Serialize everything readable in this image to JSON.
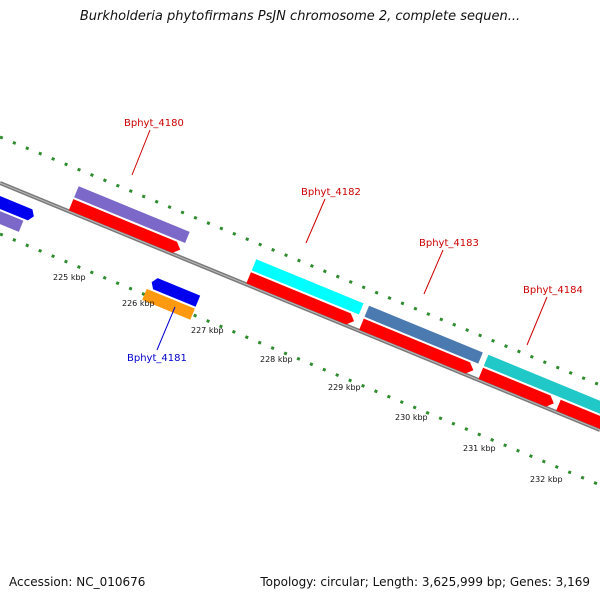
{
  "title": "Burkholderia phytofirmans PsJN chromosome 2, complete sequen...",
  "accession_text": "Accession: NC_010676",
  "summary_text": "Topology: circular; Length: 3,625,999 bp; Genes: 3,169",
  "colors": {
    "backbone": "#7a7a7a",
    "tick": "#2e8b2e",
    "cds": "#ff0000",
    "label_red": "#cc0000",
    "label_blue": "#0000cc",
    "purple": "#7b68c8",
    "blue": "#0000ee",
    "cyan": "#00ffff",
    "steelblue": "#4a7ab0",
    "teal": "#20c8c8",
    "orange": "#ff9a10"
  },
  "kbp_labels": [
    "225 kbp",
    "226 kbp",
    "227 kbp",
    "228 kbp",
    "229 kbp",
    "230 kbp",
    "231 kbp",
    "232 kbp"
  ],
  "gene_labels": [
    {
      "text": "Bphyt_4180",
      "color": "red"
    },
    {
      "text": "Bphyt_4181",
      "color": "blue"
    },
    {
      "text": "Bphyt_4182",
      "color": "red"
    },
    {
      "text": "Bphyt_4183",
      "color": "red"
    },
    {
      "text": "Bphyt_4184",
      "color": "red"
    }
  ]
}
